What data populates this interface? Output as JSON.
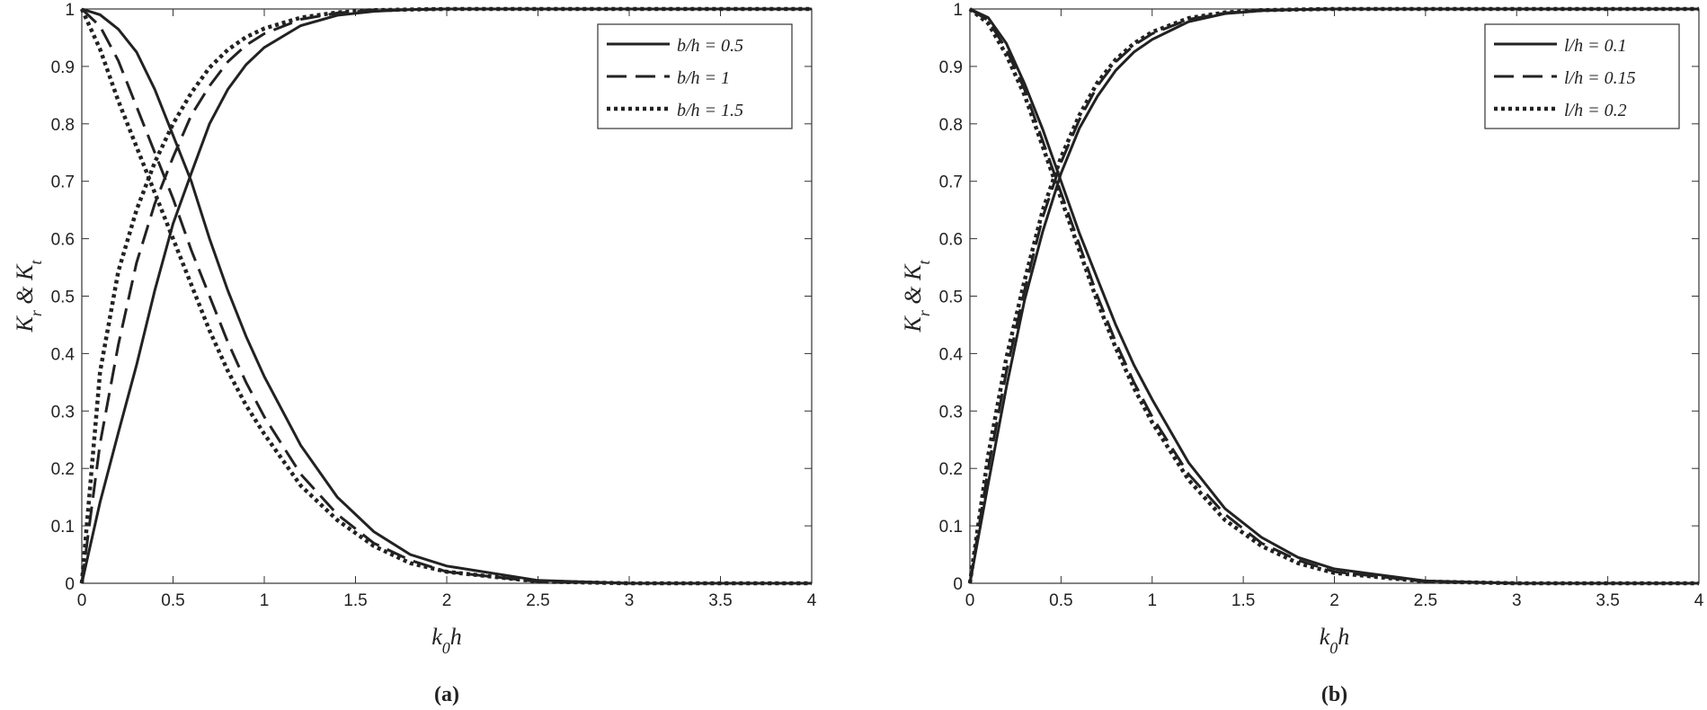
{
  "chart_data": [
    {
      "type": "line",
      "caption": "(a)",
      "xlabel": [
        {
          "text": "k"
        },
        {
          "text": "0",
          "sub": true
        },
        {
          "text": "h"
        }
      ],
      "ylabel": [
        {
          "text": "K"
        },
        {
          "text": "r",
          "sub": true
        },
        {
          "text": " & "
        },
        {
          "text": "K"
        },
        {
          "text": "t",
          "sub": true
        }
      ],
      "xlim": [
        0,
        4
      ],
      "ylim": [
        0,
        1
      ],
      "xticks": [
        0,
        0.5,
        1,
        1.5,
        2,
        2.5,
        3,
        3.5,
        4
      ],
      "yticks": [
        0,
        0.1,
        0.2,
        0.3,
        0.4,
        0.5,
        0.6,
        0.7,
        0.8,
        0.9,
        1
      ],
      "legend": "upper right",
      "x": [
        0,
        0.1,
        0.2,
        0.3,
        0.4,
        0.5,
        0.6,
        0.7,
        0.8,
        0.9,
        1,
        1.2,
        1.4,
        1.6,
        1.8,
        2,
        2.5,
        3,
        3.5,
        4
      ],
      "series": [
        {
          "name": "b/h = 0.5",
          "color": "#222222",
          "dash": "solid",
          "reflection": [
            1,
            0.99,
            0.965,
            0.925,
            0.86,
            0.78,
            0.7,
            0.6,
            0.51,
            0.43,
            0.36,
            0.24,
            0.15,
            0.09,
            0.05,
            0.03,
            0.005,
            0,
            0,
            0
          ],
          "transmission": [
            0,
            0.141,
            0.262,
            0.38,
            0.51,
            0.626,
            0.714,
            0.8,
            0.86,
            0.903,
            0.933,
            0.971,
            0.989,
            0.996,
            0.999,
            1,
            1,
            1,
            1,
            1
          ]
        },
        {
          "name": "b/h = 1",
          "color": "#222222",
          "dash": "dashed",
          "reflection": [
            1,
            0.97,
            0.91,
            0.83,
            0.75,
            0.67,
            0.58,
            0.5,
            0.42,
            0.35,
            0.29,
            0.19,
            0.12,
            0.07,
            0.04,
            0.02,
            0.003,
            0,
            0,
            0
          ],
          "transmission": [
            0,
            0.243,
            0.415,
            0.558,
            0.661,
            0.742,
            0.815,
            0.866,
            0.908,
            0.937,
            0.957,
            0.982,
            0.993,
            0.998,
            0.999,
            1,
            1,
            1,
            1,
            1
          ]
        },
        {
          "name": "b/h = 1.5",
          "color": "#222222",
          "dash": "dotted",
          "reflection": [
            1,
            0.93,
            0.84,
            0.76,
            0.68,
            0.6,
            0.52,
            0.44,
            0.37,
            0.31,
            0.26,
            0.17,
            0.11,
            0.065,
            0.035,
            0.02,
            0.003,
            0,
            0,
            0
          ],
          "transmission": [
            0,
            0.368,
            0.543,
            0.65,
            0.733,
            0.8,
            0.854,
            0.898,
            0.929,
            0.951,
            0.966,
            0.985,
            0.994,
            0.998,
            0.999,
            1,
            1,
            1,
            1,
            1
          ]
        }
      ]
    },
    {
      "type": "line",
      "caption": "(b)",
      "xlabel": [
        {
          "text": "k"
        },
        {
          "text": "0",
          "sub": true
        },
        {
          "text": "h"
        }
      ],
      "ylabel": [
        {
          "text": "K"
        },
        {
          "text": "r",
          "sub": true
        },
        {
          "text": " & "
        },
        {
          "text": "K"
        },
        {
          "text": "t",
          "sub": true
        }
      ],
      "xlim": [
        0,
        4
      ],
      "ylim": [
        0,
        1
      ],
      "xticks": [
        0,
        0.5,
        1,
        1.5,
        2,
        2.5,
        3,
        3.5,
        4
      ],
      "yticks": [
        0,
        0.1,
        0.2,
        0.3,
        0.4,
        0.5,
        0.6,
        0.7,
        0.8,
        0.9,
        1
      ],
      "legend": "upper right",
      "x": [
        0,
        0.1,
        0.2,
        0.3,
        0.4,
        0.5,
        0.6,
        0.7,
        0.8,
        0.9,
        1,
        1.2,
        1.4,
        1.6,
        1.8,
        2,
        2.5,
        3,
        3.5,
        4
      ],
      "series": [
        {
          "name": "l/h = 0.1",
          "color": "#222222",
          "dash": "solid",
          "reflection": [
            1,
            0.985,
            0.94,
            0.87,
            0.79,
            0.7,
            0.61,
            0.53,
            0.45,
            0.38,
            0.32,
            0.21,
            0.13,
            0.08,
            0.045,
            0.025,
            0.004,
            0,
            0,
            0
          ],
          "transmission": [
            0,
            0.173,
            0.341,
            0.493,
            0.613,
            0.714,
            0.792,
            0.848,
            0.893,
            0.925,
            0.947,
            0.978,
            0.992,
            0.997,
            0.999,
            1,
            1,
            1,
            1,
            1
          ]
        },
        {
          "name": "l/h = 0.15",
          "color": "#222222",
          "dash": "dashed",
          "reflection": [
            1,
            0.98,
            0.93,
            0.86,
            0.77,
            0.68,
            0.59,
            0.5,
            0.42,
            0.35,
            0.29,
            0.19,
            0.12,
            0.07,
            0.04,
            0.02,
            0.003,
            0,
            0,
            0
          ],
          "transmission": [
            0,
            0.199,
            0.368,
            0.51,
            0.638,
            0.733,
            0.807,
            0.866,
            0.908,
            0.937,
            0.957,
            0.982,
            0.993,
            0.998,
            0.999,
            1,
            1,
            1,
            1,
            1
          ]
        },
        {
          "name": "l/h = 0.2",
          "color": "#222222",
          "dash": "dotted",
          "reflection": [
            1,
            0.975,
            0.92,
            0.85,
            0.76,
            0.67,
            0.58,
            0.49,
            0.41,
            0.34,
            0.28,
            0.18,
            0.11,
            0.065,
            0.035,
            0.018,
            0.003,
            0,
            0,
            0
          ],
          "transmission": [
            0,
            0.222,
            0.392,
            0.527,
            0.65,
            0.742,
            0.815,
            0.872,
            0.912,
            0.94,
            0.96,
            0.984,
            0.994,
            0.998,
            0.999,
            1,
            1,
            1,
            1,
            1
          ]
        }
      ]
    }
  ]
}
